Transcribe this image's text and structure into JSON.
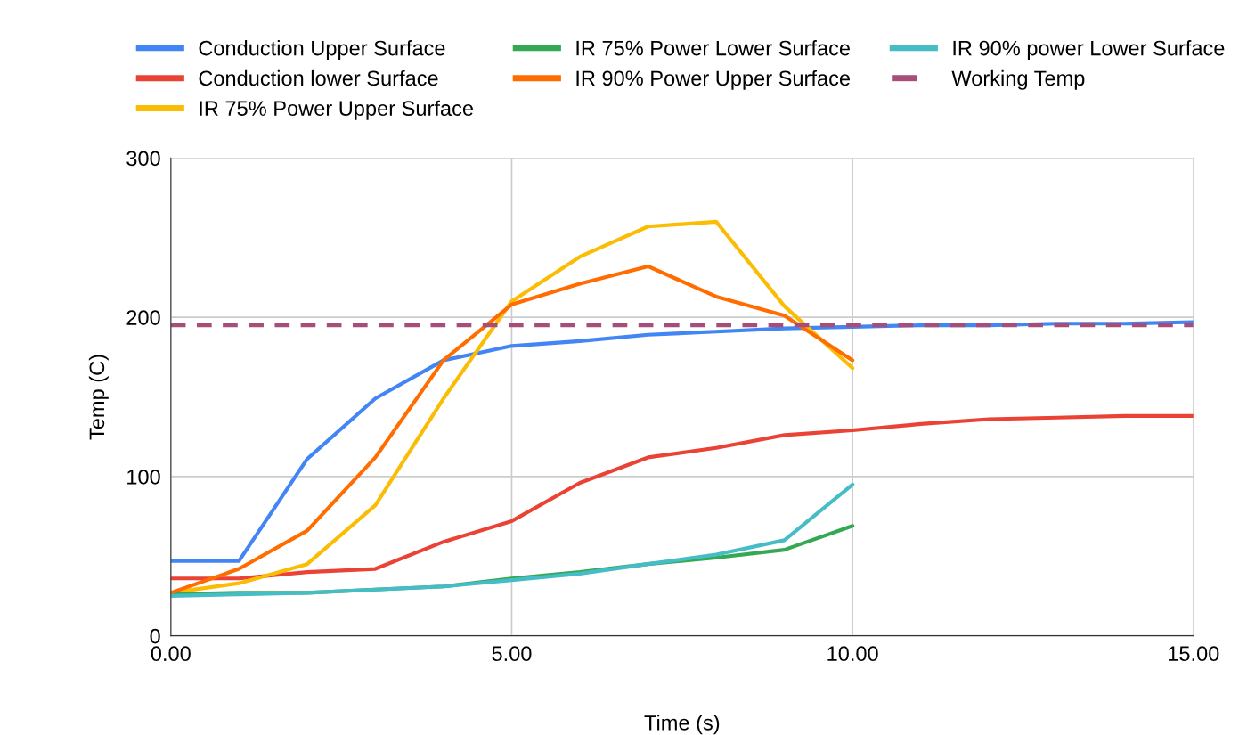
{
  "chart_data": {
    "type": "line",
    "xlabel": "Time (s)",
    "ylabel": "Temp (C)",
    "xlim": [
      0,
      15
    ],
    "xticks": [
      {
        "value": 0,
        "label": "0.00"
      },
      {
        "value": 5,
        "label": "5.00"
      },
      {
        "value": 10,
        "label": "10.00"
      },
      {
        "value": 15,
        "label": "15.00"
      }
    ],
    "ylim": [
      0,
      300
    ],
    "yticks": [
      0,
      100,
      200,
      300
    ],
    "grid": true,
    "legend": "top",
    "marker": "none",
    "series": [
      {
        "name": "Conduction Upper Surface",
        "color": "#4285f4",
        "x": [
          0,
          1,
          2,
          3,
          4,
          5,
          6,
          7,
          8,
          9,
          10,
          11,
          12,
          13,
          14,
          15
        ],
        "values": [
          47,
          47,
          111,
          149,
          173,
          182,
          185,
          189,
          191,
          193,
          194,
          195,
          195,
          196,
          196,
          197
        ]
      },
      {
        "name": "Conduction lower Surface",
        "color": "#ea4335",
        "x": [
          0,
          1,
          2,
          3,
          4,
          5,
          6,
          7,
          8,
          9,
          10,
          11,
          12,
          13,
          14,
          15
        ],
        "values": [
          36,
          36,
          40,
          42,
          59,
          72,
          96,
          112,
          118,
          126,
          129,
          133,
          136,
          137,
          138,
          138
        ]
      },
      {
        "name": "IR 75% Power Upper Surface",
        "color": "#fbbc04",
        "x": [
          0,
          1,
          2,
          3,
          4,
          5,
          6,
          7,
          8,
          9,
          10
        ],
        "values": [
          27,
          33,
          45,
          82,
          149,
          210,
          238,
          257,
          260,
          207,
          168
        ]
      },
      {
        "name": "IR 75% Power Lower Surface",
        "color": "#34a853",
        "x": [
          0,
          1,
          2,
          3,
          4,
          5,
          6,
          7,
          8,
          9,
          10
        ],
        "values": [
          26,
          27,
          27,
          29,
          31,
          36,
          40,
          45,
          49,
          54,
          69
        ]
      },
      {
        "name": "IR 90% Power Upper Surface",
        "color": "#ff6d01",
        "x": [
          0,
          1,
          2,
          3,
          4,
          5,
          6,
          7,
          8,
          9,
          10
        ],
        "values": [
          27,
          42,
          66,
          112,
          173,
          208,
          221,
          232,
          213,
          201,
          173
        ]
      },
      {
        "name": "IR 90% power Lower Surface",
        "color": "#46bdc6",
        "x": [
          0,
          1,
          2,
          3,
          4,
          5,
          6,
          7,
          8,
          9,
          10
        ],
        "values": [
          25,
          26,
          27,
          29,
          31,
          35,
          39,
          45,
          51,
          60,
          95
        ]
      },
      {
        "name": "Working Temp",
        "color": "#a64d79",
        "line_style": "dashed",
        "x": [
          0,
          15
        ],
        "values": [
          195,
          195
        ]
      }
    ]
  }
}
